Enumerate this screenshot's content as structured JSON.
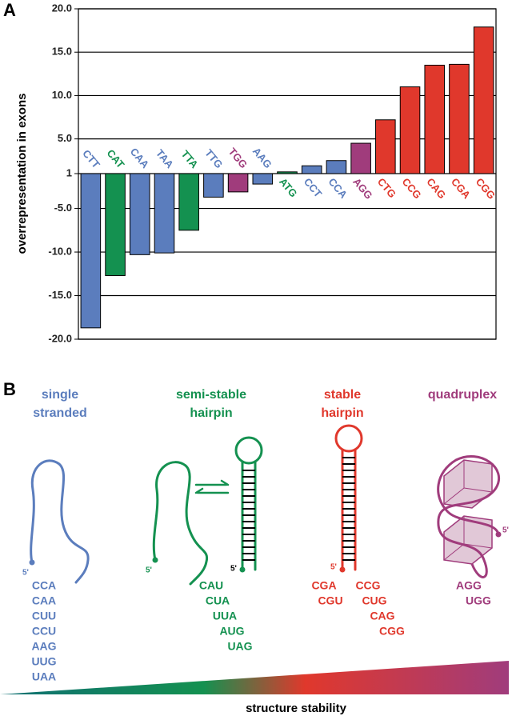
{
  "panel_labels": [
    "A",
    "B"
  ],
  "chart_data": {
    "type": "bar",
    "ylabel": "overrepresentation in exons",
    "scale": "fold",
    "categories": [
      "CTT",
      "CAT",
      "CAA",
      "TAA",
      "TTA",
      "TTG",
      "TGG",
      "AAG",
      "ATG",
      "CCT",
      "CCA",
      "AGG",
      "CTG",
      "CCG",
      "CAG",
      "CGA",
      "CGG"
    ],
    "values": [
      -18.7,
      -12.7,
      -10.3,
      -10.1,
      -7.5,
      -3.7,
      -3.1,
      -2.2,
      1.2,
      1.9,
      2.5,
      4.5,
      7.2,
      11.0,
      13.5,
      13.6,
      17.9
    ],
    "colors": [
      "#5b7dbd",
      "#149150",
      "#5b7dbd",
      "#5b7dbd",
      "#149150",
      "#5b7dbd",
      "#a03c7c",
      "#5b7dbd",
      "#149150",
      "#5b7dbd",
      "#5b7dbd",
      "#a03c7c",
      "#e0382c",
      "#e0382c",
      "#e0382c",
      "#e0382c",
      "#e0382c"
    ],
    "ylim": [
      -20,
      20
    ],
    "yticks": [
      {
        "value": 20,
        "label": "20.0"
      },
      {
        "value": 15,
        "label": "15.0"
      },
      {
        "value": 10,
        "label": "10.0"
      },
      {
        "value": 5,
        "label": "5.0"
      },
      1,
      {
        "value": -5,
        "label": "-5.0"
      },
      {
        "value": -10,
        "label": "-10.0"
      },
      {
        "value": -15,
        "label": "-15.0"
      },
      {
        "value": -20,
        "label": "-20.0"
      }
    ],
    "grid": true
  },
  "diagram": {
    "classes": [
      {
        "title": [
          "single",
          "stranded"
        ],
        "color": "#5b7dbd",
        "codons": [
          "CCA",
          "CAA",
          "CUU",
          "CCU",
          "AAG",
          "UUG",
          "UAA"
        ]
      },
      {
        "title": [
          "semi-stable",
          "hairpin"
        ],
        "color": "#149150",
        "codons": [
          "CAU",
          "CUA",
          "UUA",
          "AUG",
          "UAG"
        ]
      },
      {
        "title": [
          "stable",
          "hairpin"
        ],
        "color": "#e0382c",
        "codons": [
          "CGA",
          "CGU",
          "CCG",
          "CUG",
          "CAG",
          "CGG"
        ]
      },
      {
        "title": [
          "quadruplex"
        ],
        "color": "#a03c7c",
        "codons": [
          "AGG",
          "UGG"
        ]
      }
    ],
    "five_prime": "5'",
    "stability_label": "structure stability"
  }
}
